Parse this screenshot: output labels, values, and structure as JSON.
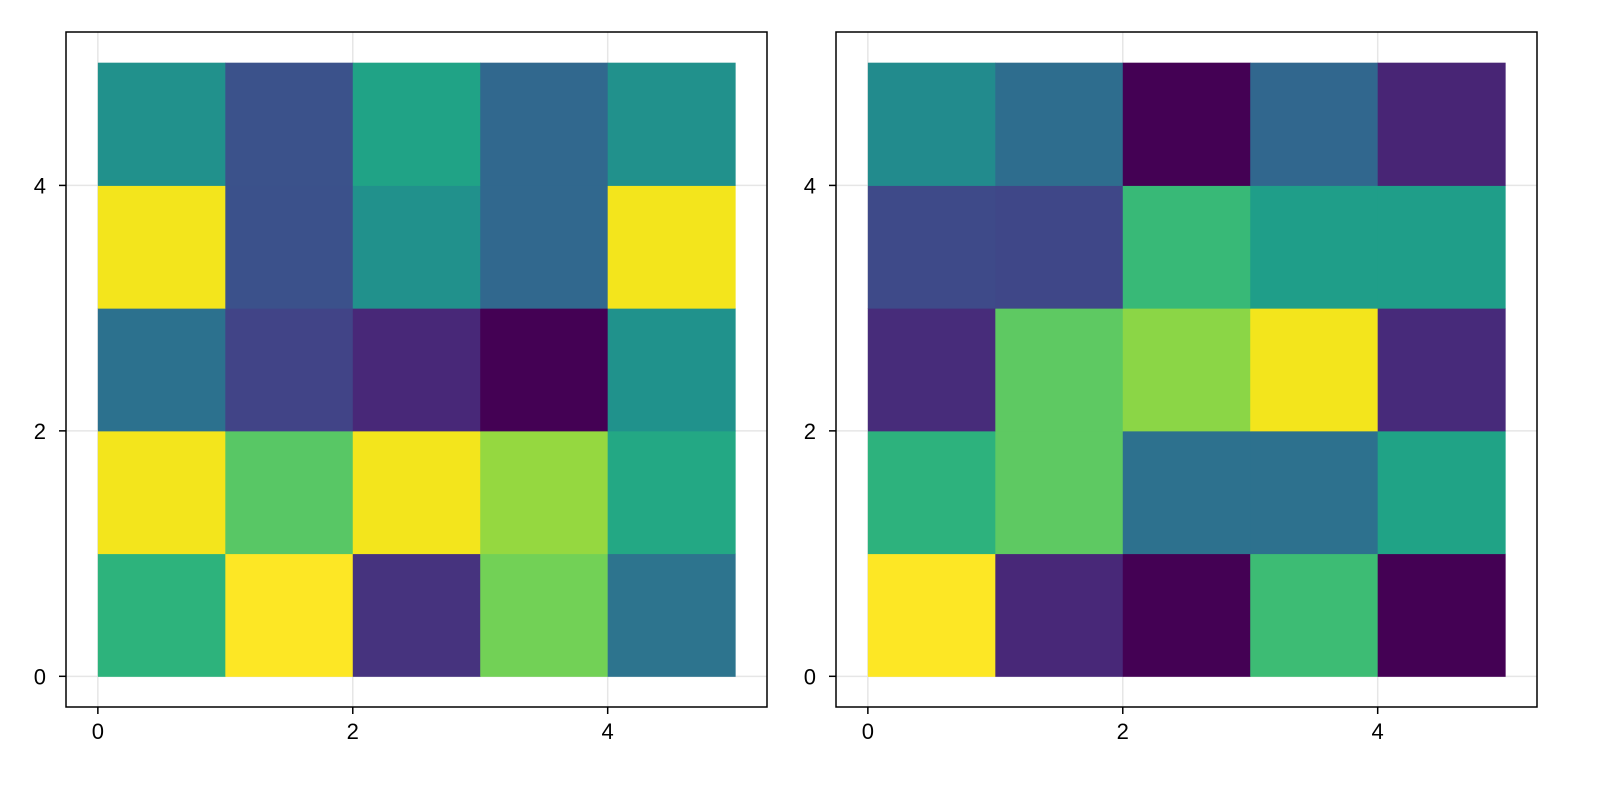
{
  "chart_data": [
    {
      "type": "heatmap",
      "title": "",
      "xlabel": "",
      "ylabel": "",
      "x_edges": [
        0,
        1,
        2,
        3,
        4,
        5
      ],
      "y_edges": [
        0,
        1,
        2,
        3,
        4,
        5
      ],
      "xlim": [
        -0.25,
        5.25
      ],
      "ylim": [
        -0.25,
        5.25
      ],
      "xticks": [
        0,
        2,
        4
      ],
      "yticks": [
        0,
        2,
        4
      ],
      "grid": true,
      "colormap": "viridis",
      "colors_bottom_to_top": [
        [
          "#2db37c",
          "#fde725",
          "#46337e",
          "#72d156",
          "#2d748e"
        ],
        [
          "#f3e51c",
          "#58c765",
          "#f3e51c",
          "#95d840",
          "#23a884"
        ],
        [
          "#2c718e",
          "#414487",
          "#482878",
          "#440154",
          "#20928c"
        ],
        [
          "#f3e51c",
          "#3b518b",
          "#21918c",
          "#31688e",
          "#f3e51c"
        ],
        [
          "#21918c",
          "#3b528b",
          "#20a386",
          "#31688e",
          "#21918c"
        ]
      ]
    },
    {
      "type": "heatmap",
      "title": "",
      "xlabel": "",
      "ylabel": "",
      "x_edges": [
        0,
        1,
        2,
        3,
        4,
        5
      ],
      "y_edges": [
        0,
        1,
        2,
        3,
        4,
        5
      ],
      "xlim": [
        -0.25,
        5.25
      ],
      "ylim": [
        -0.25,
        5.25
      ],
      "xticks": [
        0,
        2,
        4
      ],
      "yticks": [
        0,
        2,
        4
      ],
      "grid": true,
      "colormap": "viridis",
      "colors_bottom_to_top": [
        [
          "#fde725",
          "#482878",
          "#440154",
          "#3dbc74",
          "#440154"
        ],
        [
          "#2db27d",
          "#5ec962",
          "#2d718e",
          "#2d718e",
          "#20a386"
        ],
        [
          "#472c7a",
          "#5ec962",
          "#8bd646",
          "#f3e51c",
          "#472a7a"
        ],
        [
          "#3e4a89",
          "#3f4788",
          "#38b977",
          "#1f9e89",
          "#1f9e89"
        ],
        [
          "#228b8d",
          "#2e6d8e",
          "#440154",
          "#31678e",
          "#482575"
        ]
      ]
    }
  ]
}
